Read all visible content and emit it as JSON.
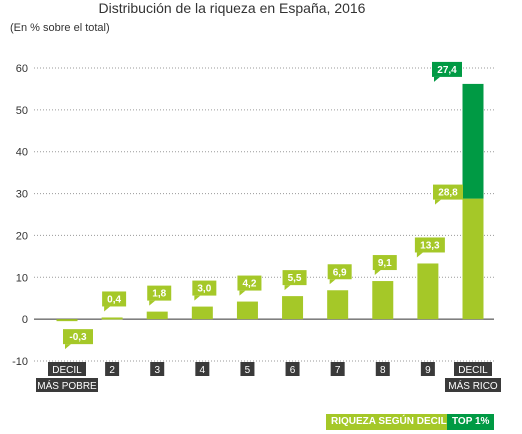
{
  "chart_data": {
    "type": "bar",
    "title": "Distribución de la riqueza en España, 2016",
    "subtitle": "(En % sobre el total)",
    "ylim": [
      -10,
      60
    ],
    "yticks": [
      -10,
      0,
      10,
      20,
      30,
      40,
      50,
      60
    ],
    "grid": "horizontal dotted",
    "categories": [
      "DECIL|MÁS POBRE",
      "2",
      "3",
      "4",
      "5",
      "6",
      "7",
      "8",
      "9",
      "DECIL|MÁS RICO"
    ],
    "series": [
      {
        "name": "RIQUEZA SEGÚN DECIL",
        "color": "#a5c828",
        "values": [
          -0.3,
          0.4,
          1.8,
          3.0,
          4.2,
          5.5,
          6.9,
          9.1,
          13.3,
          28.8
        ],
        "labels": [
          "-0,3",
          "0,4",
          "1,8",
          "3,0",
          "4,2",
          "5,5",
          "6,9",
          "9,1",
          "13,3",
          "28,8"
        ]
      },
      {
        "name": "TOP 1%",
        "color": "#009a44",
        "values": [
          null,
          null,
          null,
          null,
          null,
          null,
          null,
          null,
          null,
          27.4
        ],
        "labels": [
          "",
          "",
          "",
          "",
          "",
          "",
          "",
          "",
          "",
          "27,4"
        ],
        "stacked_on": "RIQUEZA SEGÚN DECIL"
      }
    ],
    "legend": "bottom-right",
    "label_color": "#a5c828",
    "top_label_color": "#009a44",
    "category_box_color": "#3a3a3a"
  }
}
